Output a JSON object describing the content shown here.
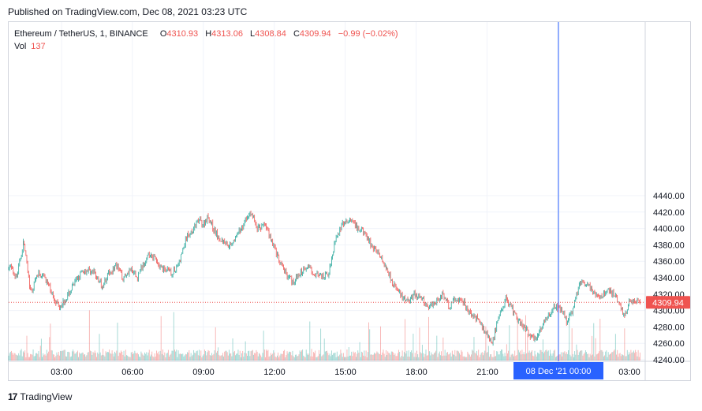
{
  "header": {
    "published": "Published on TradingView.com, Dec 08, 2021 03:23 UTC"
  },
  "legend": {
    "symbol": "Ethereum / TetherUS, 1, BINANCE",
    "open_label": "O",
    "open": "4310.93",
    "high_label": "H",
    "high": "4313.06",
    "low_label": "L",
    "low": "4308.84",
    "close_label": "C",
    "close": "4309.94",
    "change": "−0.99 (−0.02%)",
    "vol_label": "Vol",
    "vol": "137"
  },
  "price_tag": "4309.94",
  "crosshair_label": "08 Dec '21   00:00",
  "footer": {
    "brand": "TradingView"
  },
  "colors": {
    "up": "#26a69a",
    "down": "#ef5350",
    "crosshair": "#2962ff",
    "grid": "#f0f3fa"
  },
  "chart_data": {
    "type": "candlestick",
    "title": "Ethereum / TetherUS, 1, BINANCE",
    "y_ticks": [
      "4440.00",
      "4420.00",
      "4400.00",
      "4380.00",
      "4360.00",
      "4340.00",
      "4320.00",
      "4300.00",
      "4280.00",
      "4260.00",
      "4240.00"
    ],
    "x_ticks": [
      "03:00",
      "06:00",
      "09:00",
      "12:00",
      "15:00",
      "18:00",
      "21:00",
      "03:00"
    ],
    "ylim": [
      4240,
      4440
    ],
    "x_range_hours": [
      0.5,
      27.2
    ],
    "last_price": 4309.94,
    "crosshair_x": "08 Dec '21 00:00",
    "price_path": [
      [
        0.5,
        4350
      ],
      [
        0.8,
        4355
      ],
      [
        1.1,
        4340
      ],
      [
        1.4,
        4385
      ],
      [
        1.7,
        4320
      ],
      [
        2.0,
        4345
      ],
      [
        2.3,
        4340
      ],
      [
        2.6,
        4320
      ],
      [
        2.9,
        4305
      ],
      [
        3.2,
        4315
      ],
      [
        3.5,
        4330
      ],
      [
        3.8,
        4345
      ],
      [
        4.1,
        4350
      ],
      [
        4.4,
        4345
      ],
      [
        4.7,
        4330
      ],
      [
        5.0,
        4345
      ],
      [
        5.3,
        4355
      ],
      [
        5.6,
        4340
      ],
      [
        5.9,
        4350
      ],
      [
        6.2,
        4340
      ],
      [
        6.5,
        4360
      ],
      [
        6.8,
        4370
      ],
      [
        7.1,
        4355
      ],
      [
        7.4,
        4350
      ],
      [
        7.7,
        4345
      ],
      [
        8.0,
        4360
      ],
      [
        8.3,
        4390
      ],
      [
        8.6,
        4400
      ],
      [
        8.8,
        4410
      ],
      [
        9.0,
        4405
      ],
      [
        9.2,
        4415
      ],
      [
        9.5,
        4395
      ],
      [
        9.8,
        4385
      ],
      [
        10.1,
        4380
      ],
      [
        10.4,
        4390
      ],
      [
        10.7,
        4405
      ],
      [
        11.0,
        4420
      ],
      [
        11.3,
        4400
      ],
      [
        11.6,
        4405
      ],
      [
        11.9,
        4385
      ],
      [
        12.2,
        4360
      ],
      [
        12.5,
        4345
      ],
      [
        12.8,
        4335
      ],
      [
        13.1,
        4345
      ],
      [
        13.4,
        4355
      ],
      [
        13.7,
        4345
      ],
      [
        14.0,
        4340
      ],
      [
        14.3,
        4345
      ],
      [
        14.6,
        4390
      ],
      [
        14.9,
        4405
      ],
      [
        15.2,
        4410
      ],
      [
        15.5,
        4400
      ],
      [
        15.8,
        4395
      ],
      [
        16.1,
        4380
      ],
      [
        16.4,
        4370
      ],
      [
        16.7,
        4355
      ],
      [
        17.0,
        4335
      ],
      [
        17.3,
        4320
      ],
      [
        17.6,
        4310
      ],
      [
        17.9,
        4320
      ],
      [
        18.2,
        4315
      ],
      [
        18.5,
        4305
      ],
      [
        18.8,
        4310
      ],
      [
        19.1,
        4320
      ],
      [
        19.4,
        4305
      ],
      [
        19.7,
        4315
      ],
      [
        20.0,
        4310
      ],
      [
        20.3,
        4295
      ],
      [
        20.6,
        4290
      ],
      [
        20.9,
        4275
      ],
      [
        21.2,
        4260
      ],
      [
        21.5,
        4290
      ],
      [
        21.8,
        4315
      ],
      [
        22.1,
        4300
      ],
      [
        22.4,
        4285
      ],
      [
        22.7,
        4275
      ],
      [
        23.0,
        4265
      ],
      [
        23.3,
        4280
      ],
      [
        23.6,
        4295
      ],
      [
        23.9,
        4305
      ],
      [
        24.2,
        4300
      ],
      [
        24.4,
        4285
      ],
      [
        24.6,
        4300
      ],
      [
        24.9,
        4330
      ],
      [
        25.2,
        4335
      ],
      [
        25.5,
        4320
      ],
      [
        25.8,
        4315
      ],
      [
        26.1,
        4325
      ],
      [
        26.4,
        4320
      ],
      [
        26.6,
        4310
      ],
      [
        26.8,
        4290
      ],
      [
        27.0,
        4310
      ],
      [
        27.2,
        4310
      ]
    ]
  }
}
